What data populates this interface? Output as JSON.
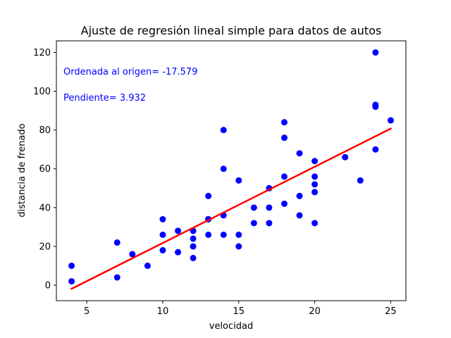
{
  "chart_data": {
    "type": "scatter",
    "title": "Ajuste de regresión lineal simple para datos de autos",
    "xlabel": "velocidad",
    "ylabel": "distancia de frenado",
    "xlim": [
      3.0,
      26.0
    ],
    "ylim": [
      -8,
      126
    ],
    "xticks": [
      5,
      10,
      15,
      20,
      25
    ],
    "yticks": [
      0,
      20,
      40,
      60,
      80,
      100,
      120
    ],
    "grid": false,
    "points": [
      [
        4,
        2
      ],
      [
        4,
        10
      ],
      [
        7,
        4
      ],
      [
        7,
        22
      ],
      [
        8,
        16
      ],
      [
        9,
        10
      ],
      [
        10,
        18
      ],
      [
        10,
        26
      ],
      [
        10,
        34
      ],
      [
        11,
        17
      ],
      [
        11,
        28
      ],
      [
        12,
        14
      ],
      [
        12,
        20
      ],
      [
        12,
        24
      ],
      [
        12,
        28
      ],
      [
        13,
        26
      ],
      [
        13,
        34
      ],
      [
        13,
        34
      ],
      [
        13,
        46
      ],
      [
        14,
        26
      ],
      [
        14,
        36
      ],
      [
        14,
        60
      ],
      [
        14,
        80
      ],
      [
        15,
        20
      ],
      [
        15,
        26
      ],
      [
        15,
        54
      ],
      [
        16,
        32
      ],
      [
        16,
        40
      ],
      [
        17,
        32
      ],
      [
        17,
        40
      ],
      [
        17,
        50
      ],
      [
        18,
        42
      ],
      [
        18,
        56
      ],
      [
        18,
        76
      ],
      [
        18,
        84
      ],
      [
        19,
        36
      ],
      [
        19,
        46
      ],
      [
        19,
        68
      ],
      [
        20,
        32
      ],
      [
        20,
        48
      ],
      [
        20,
        52
      ],
      [
        20,
        56
      ],
      [
        20,
        64
      ],
      [
        22,
        66
      ],
      [
        23,
        54
      ],
      [
        24,
        70
      ],
      [
        24,
        92
      ],
      [
        24,
        93
      ],
      [
        24,
        120
      ],
      [
        25,
        85
      ]
    ],
    "regression": {
      "intercept": -17.579,
      "slope": 3.932,
      "x_range": [
        4,
        25
      ]
    },
    "point_color": "#0000ff",
    "line_color": "#ff0000",
    "annotations": [
      {
        "text": "Ordenada al origen= -17.579",
        "color": "#0000ff"
      },
      {
        "text": "Pendiente= 3.932",
        "color": "#0000ff"
      }
    ]
  }
}
